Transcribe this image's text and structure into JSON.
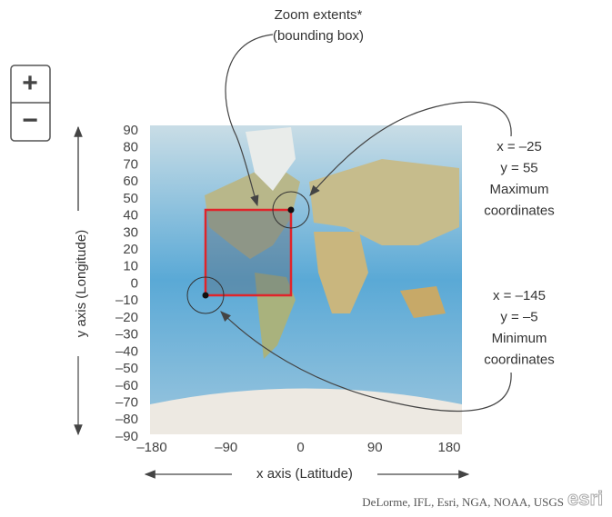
{
  "zoom_control": {
    "zoom_in": "+",
    "zoom_out": "−"
  },
  "callouts": {
    "zoom_extents": {
      "title": "Zoom extents*",
      "subtitle": "(bounding box)"
    },
    "maximum": {
      "lines": [
        "x = –25",
        "y = 55",
        "Maximum",
        "coordinates"
      ]
    },
    "minimum": {
      "lines": [
        "x = –145",
        "y = –5",
        "Minimum",
        "coordinates"
      ]
    }
  },
  "y_axis": {
    "label": "y axis (Longitude)",
    "ticks": [
      "90",
      "80",
      "70",
      "60",
      "50",
      "40",
      "30",
      "20",
      "10",
      "0",
      "–10",
      "–20",
      "–30",
      "–40",
      "–50",
      "–60",
      "–70",
      "–80",
      "–90"
    ]
  },
  "x_axis": {
    "label": "x axis (Latitude)",
    "ticks": [
      "–180",
      "–90",
      "0",
      "90",
      "180"
    ]
  },
  "attribution": "DeLorme, IFL, Esri, NGA, NOAA, USGS",
  "logo": "esri"
}
